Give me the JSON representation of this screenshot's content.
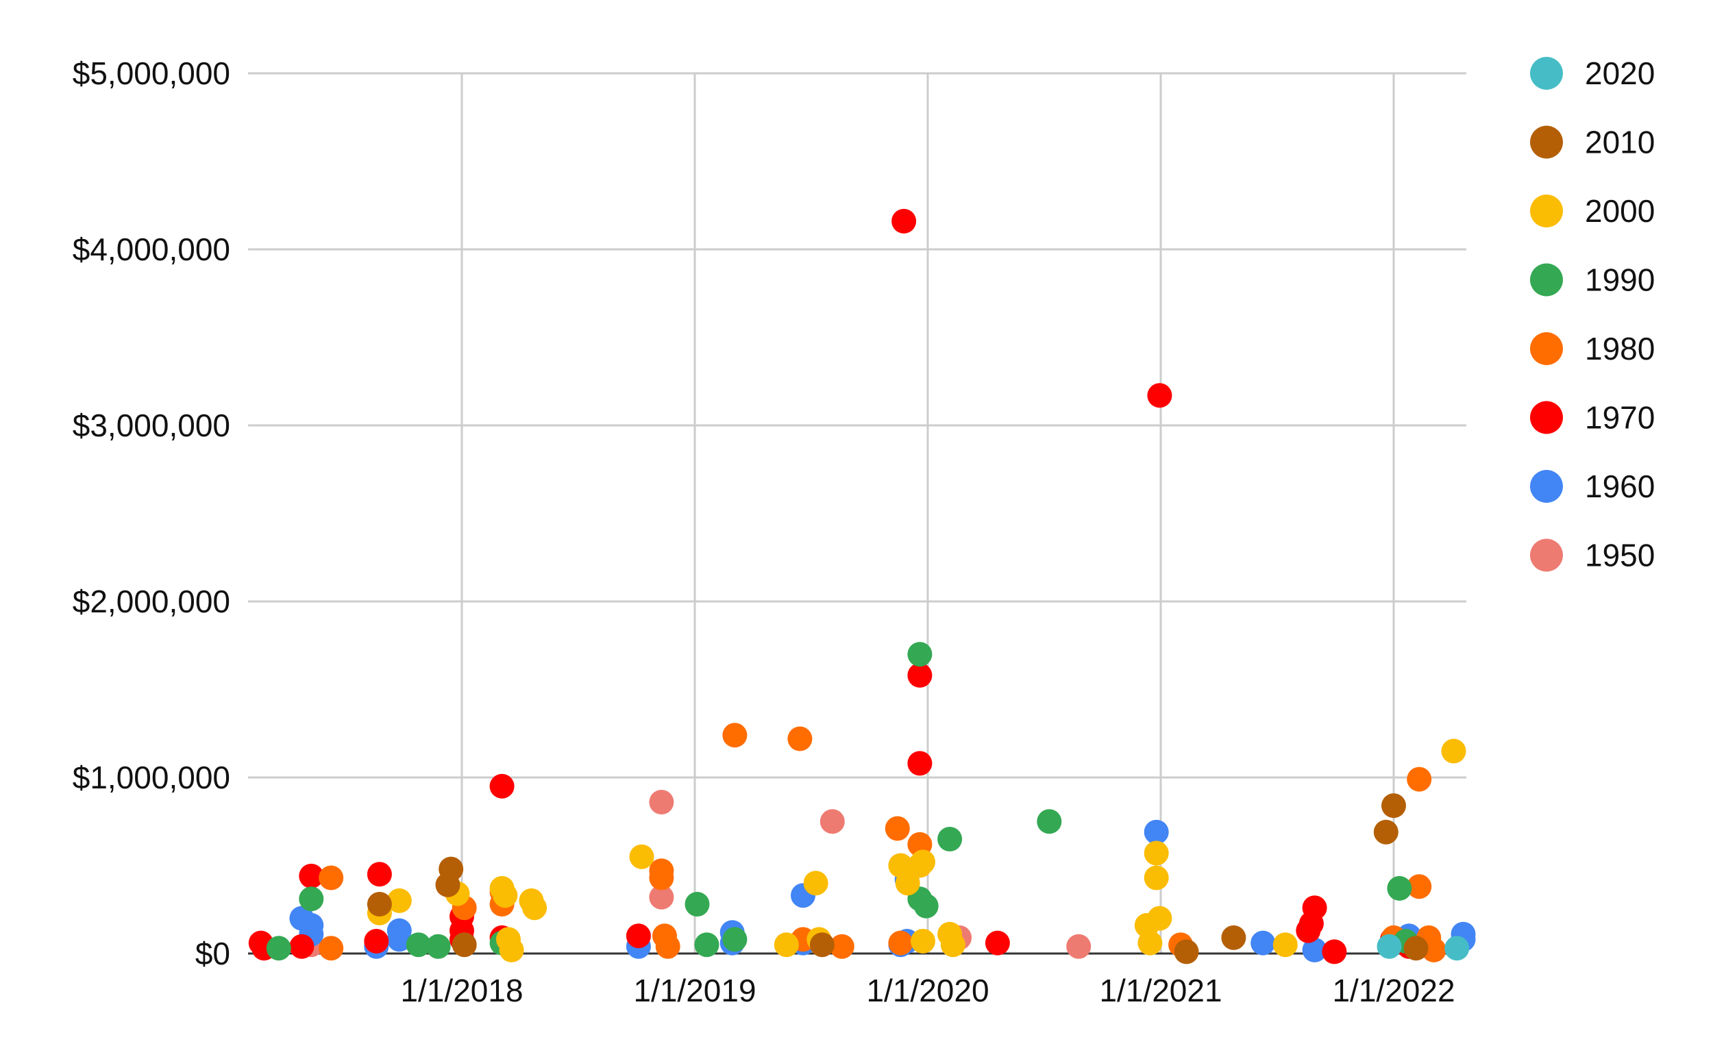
{
  "chart_data": {
    "type": "scatter",
    "title": "",
    "xlabel": "",
    "ylabel": "",
    "x_ticks": [
      "1/1/2018",
      "1/1/2019",
      "1/1/2020",
      "1/1/2021",
      "1/1/2022"
    ],
    "x_range": [
      "2017-02-15",
      "2022-04-20"
    ],
    "y_ticks": [
      "$0",
      "$1,000,000",
      "$2,000,000",
      "$3,000,000",
      "$4,000,000",
      "$5,000,000"
    ],
    "ylim": [
      0,
      5000000
    ],
    "grid": true,
    "legend_position": "right",
    "series": [
      {
        "name": "2020",
        "color": "#46bdc6",
        "points": [
          [
            "2021-12-25",
            40000
          ],
          [
            "2022-04-10",
            30000
          ]
        ]
      },
      {
        "name": "2010",
        "color": "#b45f06",
        "points": [
          [
            "2017-08-25",
            280000
          ],
          [
            "2017-12-10",
            390000
          ],
          [
            "2017-12-15",
            480000
          ],
          [
            "2018-01-05",
            50000
          ],
          [
            "2019-07-20",
            50000
          ],
          [
            "2021-02-10",
            10000
          ],
          [
            "2021-04-25",
            90000
          ],
          [
            "2021-12-20",
            690000
          ],
          [
            "2022-01-01",
            840000
          ],
          [
            "2022-02-05",
            30000
          ]
        ]
      },
      {
        "name": "2000",
        "color": "#fbbc04",
        "points": [
          [
            "2017-08-25",
            230000
          ],
          [
            "2017-09-25",
            300000
          ],
          [
            "2017-12-25",
            340000
          ],
          [
            "2018-03-05",
            370000
          ],
          [
            "2018-03-10",
            330000
          ],
          [
            "2018-03-15",
            80000
          ],
          [
            "2018-03-20",
            20000
          ],
          [
            "2018-04-20",
            300000
          ],
          [
            "2018-04-25",
            260000
          ],
          [
            "2018-10-10",
            550000
          ],
          [
            "2019-05-25",
            50000
          ],
          [
            "2019-07-10",
            400000
          ],
          [
            "2019-07-15",
            80000
          ],
          [
            "2019-11-20",
            500000
          ],
          [
            "2019-12-01",
            400000
          ],
          [
            "2019-12-20",
            500000
          ],
          [
            "2019-12-25",
            520000
          ],
          [
            "2019-12-25",
            70000
          ],
          [
            "2020-02-05",
            110000
          ],
          [
            "2020-02-10",
            50000
          ],
          [
            "2020-12-10",
            160000
          ],
          [
            "2020-12-15",
            60000
          ],
          [
            "2020-12-25",
            570000
          ],
          [
            "2020-12-25",
            430000
          ],
          [
            "2020-12-30",
            200000
          ],
          [
            "2021-07-15",
            50000
          ],
          [
            "2022-04-05",
            1150000
          ]
        ]
      },
      {
        "name": "1990",
        "color": "#34a853",
        "points": [
          [
            "2017-03-20",
            30000
          ],
          [
            "2017-05-10",
            310000
          ],
          [
            "2017-10-25",
            50000
          ],
          [
            "2017-11-25",
            40000
          ],
          [
            "2018-03-05",
            60000
          ],
          [
            "2019-01-05",
            280000
          ],
          [
            "2019-01-20",
            50000
          ],
          [
            "2019-03-05",
            80000
          ],
          [
            "2019-12-20",
            1700000
          ],
          [
            "2019-12-20",
            310000
          ],
          [
            "2019-12-30",
            270000
          ],
          [
            "2020-02-05",
            650000
          ],
          [
            "2020-07-10",
            750000
          ],
          [
            "2022-01-10",
            370000
          ],
          [
            "2022-01-20",
            70000
          ]
        ]
      },
      {
        "name": "1980",
        "color": "#ff6d01",
        "points": [
          [
            "2017-06-10",
            430000
          ],
          [
            "2017-06-10",
            30000
          ],
          [
            "2018-01-05",
            260000
          ],
          [
            "2018-03-05",
            280000
          ],
          [
            "2018-03-05",
            350000
          ],
          [
            "2018-11-10",
            470000
          ],
          [
            "2018-11-10",
            430000
          ],
          [
            "2018-11-15",
            100000
          ],
          [
            "2018-11-20",
            40000
          ],
          [
            "2019-03-05",
            1240000
          ],
          [
            "2019-06-15",
            1220000
          ],
          [
            "2019-06-20",
            80000
          ],
          [
            "2019-08-20",
            40000
          ],
          [
            "2019-11-15",
            710000
          ],
          [
            "2019-11-20",
            60000
          ],
          [
            "2019-12-20",
            620000
          ],
          [
            "2021-02-01",
            50000
          ],
          [
            "2022-01-01",
            90000
          ],
          [
            "2022-02-10",
            990000
          ],
          [
            "2022-02-10",
            380000
          ],
          [
            "2022-02-25",
            90000
          ],
          [
            "2022-03-05",
            20000
          ]
        ]
      },
      {
        "name": "1970",
        "color": "#ff0000",
        "points": [
          [
            "2017-02-20",
            60000
          ],
          [
            "2017-02-25",
            30000
          ],
          [
            "2017-04-25",
            40000
          ],
          [
            "2017-05-10",
            440000
          ],
          [
            "2017-08-25",
            450000
          ],
          [
            "2017-08-20",
            70000
          ],
          [
            "2018-01-01",
            210000
          ],
          [
            "2018-01-01",
            130000
          ],
          [
            "2018-01-01",
            80000
          ],
          [
            "2018-03-05",
            950000
          ],
          [
            "2018-03-05",
            90000
          ],
          [
            "2018-10-05",
            100000
          ],
          [
            "2019-11-25",
            4160000
          ],
          [
            "2019-12-20",
            1580000
          ],
          [
            "2019-12-20",
            1080000
          ],
          [
            "2020-04-20",
            60000
          ],
          [
            "2020-12-30",
            3170000
          ],
          [
            "2021-08-20",
            130000
          ],
          [
            "2021-08-25",
            170000
          ],
          [
            "2021-08-30",
            260000
          ],
          [
            "2021-09-30",
            10000
          ],
          [
            "2021-12-30",
            80000
          ],
          [
            "2022-01-25",
            40000
          ]
        ]
      },
      {
        "name": "1960",
        "color": "#4285f4",
        "points": [
          [
            "2017-04-25",
            200000
          ],
          [
            "2017-05-10",
            160000
          ],
          [
            "2017-05-10",
            110000
          ],
          [
            "2017-08-20",
            40000
          ],
          [
            "2017-09-25",
            130000
          ],
          [
            "2017-09-25",
            80000
          ],
          [
            "2018-10-05",
            40000
          ],
          [
            "2019-03-01",
            120000
          ],
          [
            "2019-03-01",
            60000
          ],
          [
            "2019-06-20",
            330000
          ],
          [
            "2019-06-20",
            60000
          ],
          [
            "2019-11-30",
            420000
          ],
          [
            "2019-11-30",
            70000
          ],
          [
            "2019-11-20",
            50000
          ],
          [
            "2020-12-25",
            690000
          ],
          [
            "2021-06-10",
            60000
          ],
          [
            "2021-08-30",
            20000
          ],
          [
            "2022-01-25",
            100000
          ],
          [
            "2022-04-20",
            110000
          ],
          [
            "2022-04-20",
            80000
          ]
        ]
      },
      {
        "name": "1950",
        "color": "#ee7b72",
        "points": [
          [
            "2017-05-10",
            50000
          ],
          [
            "2018-11-10",
            860000
          ],
          [
            "2018-11-10",
            320000
          ],
          [
            "2019-08-05",
            750000
          ],
          [
            "2020-02-20",
            90000
          ],
          [
            "2020-08-25",
            40000
          ]
        ]
      }
    ]
  }
}
